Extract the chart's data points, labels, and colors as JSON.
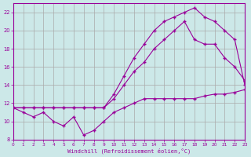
{
  "background_color": "#cce8e8",
  "grid_color": "#aaaaaa",
  "line_color": "#990099",
  "xlabel": "Windchill (Refroidissement éolien,°C)",
  "ylim": [
    8,
    23
  ],
  "xlim": [
    0,
    23
  ],
  "yticks": [
    8,
    10,
    12,
    14,
    16,
    18,
    20,
    22
  ],
  "xticks": [
    0,
    1,
    2,
    3,
    4,
    5,
    6,
    7,
    8,
    9,
    10,
    11,
    12,
    13,
    14,
    15,
    16,
    17,
    18,
    19,
    20,
    21,
    22,
    23
  ],
  "line1_x": [
    0,
    1,
    2,
    3,
    4,
    5,
    6,
    7,
    8,
    9,
    10,
    11,
    12,
    13,
    14,
    15,
    16,
    17,
    18,
    19,
    20,
    21,
    22,
    23
  ],
  "line1_y": [
    11.5,
    11.0,
    10.5,
    11.0,
    10.0,
    9.5,
    10.5,
    8.5,
    9.0,
    10.0,
    11.0,
    11.5,
    12.0,
    12.5,
    12.5,
    12.5,
    12.5,
    12.5,
    12.5,
    12.8,
    13.0,
    13.0,
    13.2,
    13.5
  ],
  "line2_x": [
    0,
    1,
    2,
    3,
    4,
    5,
    6,
    7,
    8,
    9,
    10,
    11,
    12,
    13,
    14,
    15,
    16,
    17,
    18,
    19,
    20,
    21,
    22,
    23
  ],
  "line2_y": [
    11.5,
    11.5,
    11.5,
    11.5,
    11.5,
    11.5,
    11.5,
    11.5,
    11.5,
    11.5,
    12.5,
    14.0,
    15.5,
    16.5,
    18.0,
    19.0,
    20.0,
    21.0,
    19.0,
    18.5,
    18.5,
    17.0,
    16.0,
    14.5
  ],
  "line3_x": [
    0,
    1,
    2,
    3,
    4,
    5,
    6,
    7,
    8,
    9,
    10,
    11,
    12,
    13,
    14,
    15,
    16,
    17,
    18,
    19,
    20,
    21,
    22,
    23
  ],
  "line3_y": [
    11.5,
    11.5,
    11.5,
    11.5,
    11.5,
    11.5,
    11.5,
    11.5,
    11.5,
    11.5,
    13.0,
    15.0,
    17.0,
    18.5,
    20.0,
    21.0,
    21.5,
    22.0,
    22.5,
    21.5,
    21.0,
    20.0,
    19.0,
    14.0
  ]
}
